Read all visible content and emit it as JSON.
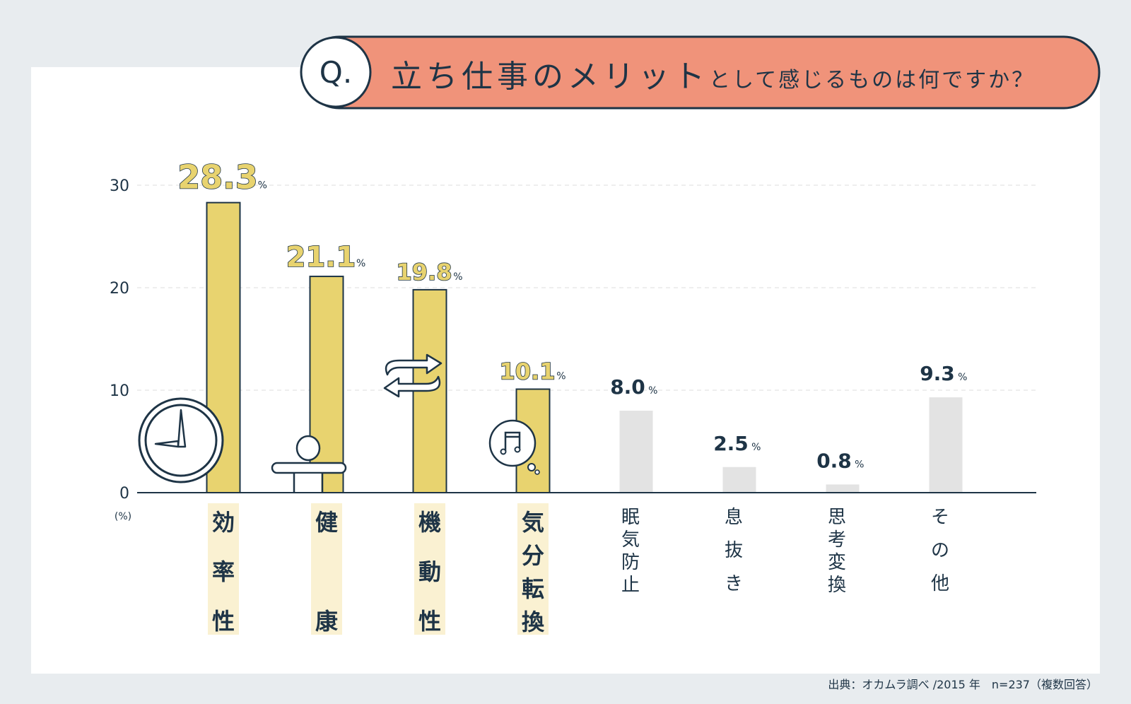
{
  "title": {
    "q": "Q.",
    "main": "立ち仕事のメリット",
    "sub": "として感じるものは何ですか？"
  },
  "source": "出典：オカムラ調べ /2015 年　n=237（複数回答）",
  "colors": {
    "highlight": "#e8d36f",
    "muted": "#e3e3e3",
    "banner": "#f0937a",
    "ink": "#1e3446",
    "label_bg": "#faf1d2"
  },
  "chart_data": {
    "type": "bar",
    "title": "立ち仕事のメリットとして感じるものは何ですか？",
    "ylabel": "(%)",
    "ylim": [
      0,
      30
    ],
    "yticks": [
      0,
      10,
      20,
      30
    ],
    "grid": true,
    "categories": [
      "効率性",
      "健康",
      "機動性",
      "気分転換",
      "眠気防止",
      "息抜き",
      "思考変換",
      "その他"
    ],
    "values": [
      28.3,
      21.1,
      19.8,
      10.1,
      8.0,
      2.5,
      0.8,
      9.3
    ],
    "value_labels": [
      "28.3",
      "21.1",
      "19.8",
      "10.1",
      "8.0",
      "2.5",
      "0.8",
      "9.3"
    ],
    "value_suffix": "%",
    "highlighted": [
      true,
      true,
      true,
      true,
      false,
      false,
      false,
      false
    ],
    "icons": [
      "clock-icon",
      "person-icon",
      "swap-arrows-icon",
      "music-bubble-icon"
    ]
  }
}
